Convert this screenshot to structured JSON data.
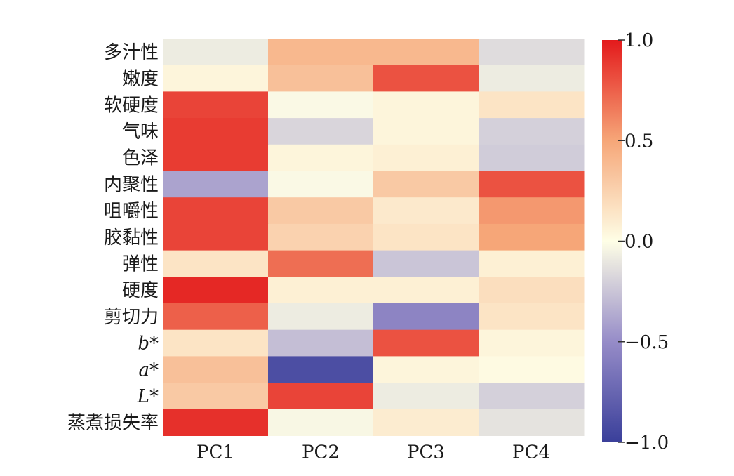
{
  "chart_data": {
    "type": "heatmap",
    "x_categories": [
      "PC1",
      "PC2",
      "PC3",
      "PC4"
    ],
    "y_categories": [
      "多汁性",
      "嫩度",
      "软硬度",
      "气味",
      "色泽",
      "内聚性",
      "咀嚼性",
      "胶黏性",
      "弹性",
      "硬度",
      "剪切力",
      "b*",
      "a*",
      "L*",
      "蒸煮损失率"
    ],
    "italic_rows": [
      "b*",
      "a*",
      "L*"
    ],
    "values": [
      [
        -0.08,
        0.4,
        0.4,
        -0.15
      ],
      [
        0.05,
        0.35,
        0.8,
        -0.08
      ],
      [
        0.85,
        -0.02,
        0.05,
        0.15
      ],
      [
        0.88,
        -0.18,
        0.05,
        -0.2
      ],
      [
        0.88,
        0.05,
        0.08,
        -0.22
      ],
      [
        -0.4,
        -0.02,
        0.3,
        0.8
      ],
      [
        0.85,
        0.3,
        0.12,
        0.55
      ],
      [
        0.85,
        0.25,
        0.15,
        0.5
      ],
      [
        0.15,
        0.7,
        -0.25,
        0.08
      ],
      [
        0.95,
        0.08,
        0.08,
        0.18
      ],
      [
        0.75,
        -0.08,
        -0.55,
        0.15
      ],
      [
        0.15,
        -0.28,
        0.8,
        0.05
      ],
      [
        0.35,
        -0.9,
        0.05,
        0.02
      ],
      [
        0.3,
        0.85,
        -0.08,
        -0.2
      ],
      [
        0.92,
        -0.03,
        0.1,
        -0.12
      ]
    ],
    "colorbar": {
      "min": -1.0,
      "max": 1.0,
      "ticks": [
        1.0,
        0.5,
        0.0,
        -0.5,
        -1.0
      ],
      "tick_labels": [
        "1.0",
        "0.5",
        "0.0",
        "−0.5",
        "−1.0"
      ],
      "colors": {
        "neg": "#3a3f9a",
        "mid": "#fefee6",
        "pos": "#e31a1c"
      }
    }
  }
}
